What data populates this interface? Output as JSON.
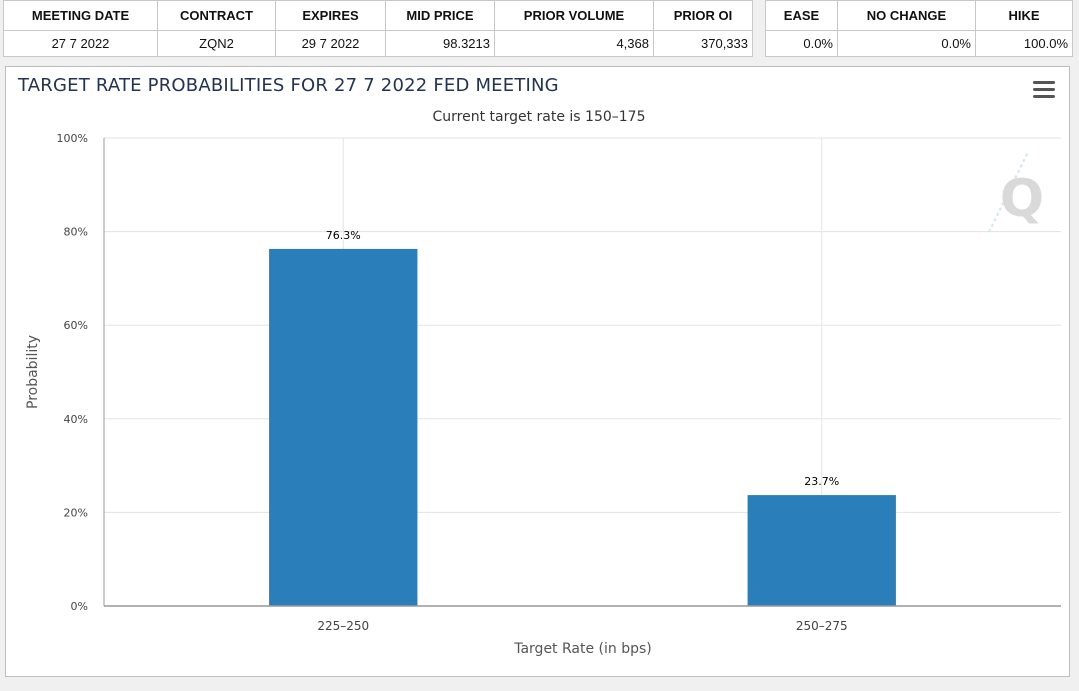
{
  "table_left": {
    "headers": [
      "MEETING DATE",
      "CONTRACT",
      "EXPIRES",
      "MID PRICE",
      "PRIOR VOLUME",
      "PRIOR OI"
    ],
    "row": [
      "27 7 2022",
      "ZQN2",
      "29 7 2022",
      "98.3213",
      "4,368",
      "370,333"
    ]
  },
  "table_right": {
    "headers": [
      "EASE",
      "NO CHANGE",
      "HIKE"
    ],
    "row": [
      "0.0%",
      "0.0%",
      "100.0%"
    ]
  },
  "chart_panel": {
    "title": "TARGET RATE PROBABILITIES FOR 27 7 2022 FED MEETING",
    "menu_icon": "hamburger-menu-icon",
    "watermark": "Q"
  },
  "chart_data": {
    "type": "bar",
    "title": "TARGET RATE PROBABILITIES FOR 27 7 2022 FED MEETING",
    "subtitle": "Current target rate is 150–175",
    "xlabel": "Target Rate (in bps)",
    "ylabel": "Probability",
    "categories": [
      "225–250",
      "250–275"
    ],
    "values": [
      76.3,
      23.7
    ],
    "data_labels": [
      "76.3%",
      "23.7%"
    ],
    "ylim": [
      0,
      100
    ],
    "yticks": [
      0,
      20,
      40,
      60,
      80,
      100
    ],
    "ytick_labels": [
      "0%",
      "20%",
      "40%",
      "60%",
      "80%",
      "100%"
    ],
    "bar_color": "#2a7fba",
    "grid": true,
    "legend": "none"
  }
}
